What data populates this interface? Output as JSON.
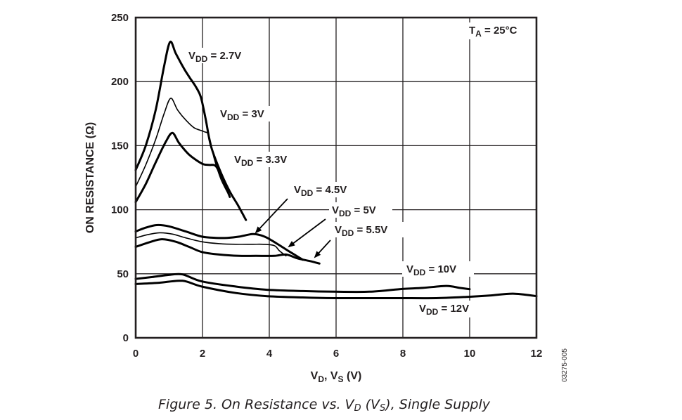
{
  "chart_data": {
    "type": "line",
    "title": "",
    "caption": {
      "prefix": "Figure 5. On Resistance vs. V",
      "sub1": "D",
      "mid": " (V",
      "sub2": "S",
      "suffix": "), Single Supply"
    },
    "figure_id": "03275-005",
    "xlabel": {
      "main1": "V",
      "sub1": "D",
      "mid": ", V",
      "sub2": "S",
      "tail": " (V)"
    },
    "ylabel": "ON RESISTANCE (Ω)",
    "xlim": [
      0,
      12
    ],
    "ylim": [
      0,
      250
    ],
    "x_ticks": [
      0,
      2,
      4,
      6,
      8,
      10,
      12
    ],
    "y_ticks": [
      0,
      50,
      100,
      150,
      200,
      250
    ],
    "grid": true,
    "condition": {
      "main": "T",
      "sub": "A",
      "tail": " = 25°C"
    },
    "series": [
      {
        "name": "VDD = 2.7V",
        "label_main": "V",
        "label_sub": "DD",
        "label_tail": " = 2.7V",
        "weight": "heavy",
        "x": [
          0,
          0.3,
          0.6,
          0.85,
          1.03,
          1.2,
          1.45,
          1.62,
          1.8,
          1.95,
          2.1,
          2.25,
          2.5,
          2.8,
          3.05,
          3.3
        ],
        "y": [
          131,
          150,
          178,
          212,
          231,
          222,
          210,
          203,
          196,
          188,
          170,
          150,
          132,
          115,
          104,
          92
        ]
      },
      {
        "name": "VDD = 3V",
        "label_main": "V",
        "label_sub": "DD",
        "label_tail": " = 3V",
        "weight": "light",
        "x": [
          0,
          0.3,
          0.6,
          0.85,
          1.05,
          1.25,
          1.5,
          1.75,
          2.04,
          2.19,
          2.35,
          2.55,
          2.82
        ],
        "y": [
          118,
          135,
          155,
          175,
          187,
          178,
          170,
          164,
          161,
          158,
          140,
          124,
          110
        ]
      },
      {
        "name": "VDD = 3.3V",
        "label_main": "V",
        "label_sub": "DD",
        "label_tail": " = 3.3V",
        "weight": "heavy",
        "x": [
          0,
          0.3,
          0.6,
          0.9,
          1.1,
          1.3,
          1.6,
          1.98,
          2.2,
          2.4,
          2.6,
          2.82
        ],
        "y": [
          106,
          120,
          137,
          153,
          160,
          152,
          143,
          136,
          135,
          134,
          124,
          110
        ]
      },
      {
        "name": "VDD = 4.5V",
        "label_main": "V",
        "label_sub": "DD",
        "label_tail": " = 4.5V",
        "weight": "heavy",
        "x": [
          0,
          0.3,
          0.63,
          1.0,
          1.5,
          1.98,
          2.4,
          2.74,
          3.1,
          3.5,
          3.75,
          3.94,
          4.2,
          4.5,
          4.75,
          5.0
        ],
        "y": [
          83,
          86,
          88,
          87,
          83,
          79,
          78,
          78,
          79,
          81,
          80,
          78,
          74,
          69,
          65,
          61
        ]
      },
      {
        "name": "VDD = 5V",
        "label_main": "V",
        "label_sub": "DD",
        "label_tail": " = 5V",
        "weight": "light",
        "x": [
          0,
          0.35,
          0.72,
          1.1,
          1.5,
          1.98,
          2.5,
          3.0,
          3.5,
          3.8,
          4.15,
          4.3,
          4.5
        ],
        "y": [
          78,
          80.5,
          82,
          81,
          78,
          75,
          73.5,
          73,
          73,
          73,
          72,
          68,
          64
        ]
      },
      {
        "name": "VDD = 5.5V",
        "label_main": "V",
        "label_sub": "DD",
        "label_tail": " = 5.5V",
        "weight": "heavy",
        "x": [
          0,
          0.4,
          0.78,
          1.2,
          1.6,
          1.98,
          2.5,
          3.1,
          3.6,
          4.15,
          4.5,
          4.85,
          5.2,
          5.5
        ],
        "y": [
          71,
          74.5,
          77,
          75,
          71,
          67,
          65,
          64,
          64,
          64,
          65,
          62,
          60,
          58
        ]
      },
      {
        "name": "VDD = 10V",
        "label_main": "V",
        "label_sub": "DD",
        "label_tail": " = 10V",
        "weight": "heavy",
        "x": [
          0,
          0.5,
          0.95,
          1.4,
          1.98,
          3.0,
          3.94,
          5.0,
          5.96,
          7.0,
          7.9,
          8.6,
          9.3,
          9.7,
          10.0
        ],
        "y": [
          46,
          47.5,
          49,
          49.5,
          44,
          40,
          37.5,
          36.5,
          36,
          36,
          38,
          39,
          40.5,
          39,
          38
        ]
      },
      {
        "name": "VDD = 12V",
        "label_main": "V",
        "label_sub": "DD",
        "label_tail": " = 12V",
        "weight": "heavy",
        "x": [
          0,
          0.7,
          1.4,
          1.98,
          3.0,
          3.94,
          5.0,
          5.96,
          7.0,
          7.9,
          9.0,
          9.96,
          10.6,
          11.3,
          12.0
        ],
        "y": [
          42,
          43,
          44.5,
          40,
          35,
          32.5,
          31.5,
          31,
          31,
          31,
          31,
          32,
          33,
          34.5,
          32.5
        ]
      }
    ]
  }
}
